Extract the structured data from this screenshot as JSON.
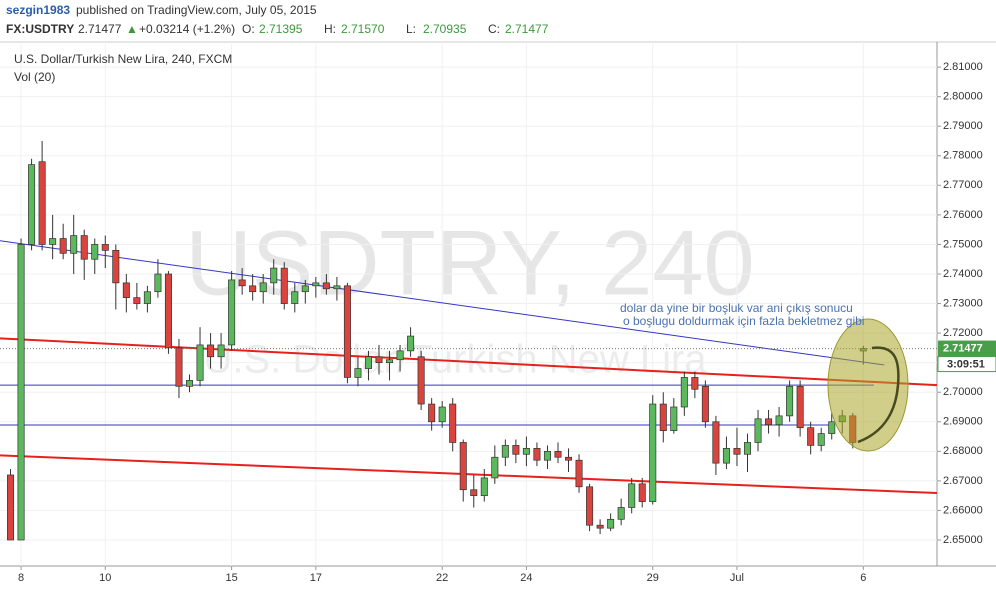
{
  "header": {
    "user": "sezgin1983",
    "published": "published on TradingView.com, July 05, 2015",
    "symbol": "FX:USDTRY",
    "last": "2.71477",
    "arrow": "▲",
    "change": "+0.03214 (+1.2%)",
    "ohlc": [
      {
        "label": "O:",
        "value": "2.71395"
      },
      {
        "label": "H:",
        "value": "2.71570"
      },
      {
        "label": "L:",
        "value": "2.70935"
      },
      {
        "label": "C:",
        "value": "2.71477"
      }
    ]
  },
  "chart_data": {
    "type": "candlestick",
    "title": "U.S. Dollar/Turkish New Lira, 240, FXCM",
    "indicator": "Vol (20)",
    "watermark": "USDTRY, 240",
    "watermark_sub": "U.S. Dollar/Turkish New Lira",
    "up_color": "#5cb85c",
    "down_color": "#d9443f",
    "grid": true,
    "xlim": [
      -1,
      88
    ],
    "ylim": [
      2.6412,
      2.8185
    ],
    "xticks": [
      {
        "value": 1,
        "label": "8"
      },
      {
        "value": 9,
        "label": "10"
      },
      {
        "value": 21,
        "label": "15"
      },
      {
        "value": 29,
        "label": "17"
      },
      {
        "value": 41,
        "label": "22"
      },
      {
        "value": 49,
        "label": "24"
      },
      {
        "value": 61,
        "label": "29"
      },
      {
        "value": 69,
        "label": "Jul"
      },
      {
        "value": 81,
        "label": "6"
      }
    ],
    "yticks": [
      {
        "value": 2.65,
        "label": "2.65000"
      },
      {
        "value": 2.66,
        "label": "2.66000"
      },
      {
        "value": 2.67,
        "label": "2.67000"
      },
      {
        "value": 2.68,
        "label": "2.68000"
      },
      {
        "value": 2.69,
        "label": "2.69000"
      },
      {
        "value": 2.7,
        "label": "2.70000"
      },
      {
        "value": 2.71,
        "label": "2.71000"
      },
      {
        "value": 2.72,
        "label": "2.72000"
      },
      {
        "value": 2.73,
        "label": "2.73000"
      },
      {
        "value": 2.74,
        "label": "2.74000"
      },
      {
        "value": 2.75,
        "label": "2.75000"
      },
      {
        "value": 2.76,
        "label": "2.76000"
      },
      {
        "value": 2.77,
        "label": "2.77000"
      },
      {
        "value": 2.78,
        "label": "2.78000"
      },
      {
        "value": 2.79,
        "label": "2.79000"
      },
      {
        "value": 2.8,
        "label": "2.80000"
      },
      {
        "value": 2.81,
        "label": "2.81000"
      }
    ],
    "last_price": 2.71477,
    "countdown": "3:09:51",
    "candles": [
      [
        2.672,
        2.674,
        2.65,
        2.65
      ],
      [
        2.65,
        2.752,
        2.65,
        2.75
      ],
      [
        2.75,
        2.779,
        2.748,
        2.777
      ],
      [
        2.778,
        2.785,
        2.748,
        2.75
      ],
      [
        2.75,
        2.76,
        2.745,
        2.752
      ],
      [
        2.752,
        2.757,
        2.745,
        2.747
      ],
      [
        2.747,
        2.76,
        2.74,
        2.753
      ],
      [
        2.753,
        2.755,
        2.738,
        2.745
      ],
      [
        2.745,
        2.752,
        2.74,
        2.75
      ],
      [
        2.75,
        2.753,
        2.742,
        2.748
      ],
      [
        2.748,
        2.75,
        2.728,
        2.737
      ],
      [
        2.737,
        2.74,
        2.727,
        2.732
      ],
      [
        2.732,
        2.737,
        2.728,
        2.73
      ],
      [
        2.73,
        2.736,
        2.727,
        2.734
      ],
      [
        2.734,
        2.745,
        2.732,
        2.74
      ],
      [
        2.74,
        2.741,
        2.713,
        2.715
      ],
      [
        2.715,
        2.718,
        2.698,
        2.702
      ],
      [
        2.702,
        2.706,
        2.7,
        2.704
      ],
      [
        2.704,
        2.722,
        2.702,
        2.716
      ],
      [
        2.716,
        2.72,
        2.708,
        2.712
      ],
      [
        2.712,
        2.72,
        2.708,
        2.716
      ],
      [
        2.716,
        2.741,
        2.714,
        2.738
      ],
      [
        2.738,
        2.742,
        2.733,
        2.736
      ],
      [
        2.736,
        2.74,
        2.731,
        2.734
      ],
      [
        2.734,
        2.74,
        2.73,
        2.737
      ],
      [
        2.737,
        2.745,
        2.733,
        2.742
      ],
      [
        2.742,
        2.744,
        2.728,
        2.73
      ],
      [
        2.73,
        2.737,
        2.727,
        2.734
      ],
      [
        2.734,
        2.738,
        2.73,
        2.736
      ],
      [
        2.736,
        2.739,
        2.732,
        2.737
      ],
      [
        2.737,
        2.74,
        2.733,
        2.735
      ],
      [
        2.735,
        2.739,
        2.731,
        2.736
      ],
      [
        2.736,
        2.737,
        2.703,
        2.705
      ],
      [
        2.705,
        2.712,
        2.702,
        2.708
      ],
      [
        2.708,
        2.714,
        2.704,
        2.712
      ],
      [
        2.712,
        2.716,
        2.706,
        2.71
      ],
      [
        2.71,
        2.714,
        2.704,
        2.711
      ],
      [
        2.711,
        2.716,
        2.707,
        2.714
      ],
      [
        2.714,
        2.722,
        2.712,
        2.719
      ],
      [
        2.712,
        2.714,
        2.694,
        2.696
      ],
      [
        2.696,
        2.698,
        2.687,
        2.69
      ],
      [
        2.69,
        2.697,
        2.688,
        2.695
      ],
      [
        2.696,
        2.698,
        2.68,
        2.683
      ],
      [
        2.683,
        2.684,
        2.663,
        2.667
      ],
      [
        2.667,
        2.672,
        2.661,
        2.665
      ],
      [
        2.665,
        2.674,
        2.663,
        2.671
      ],
      [
        2.671,
        2.682,
        2.669,
        2.678
      ],
      [
        2.678,
        2.684,
        2.675,
        2.682
      ],
      [
        2.682,
        2.684,
        2.676,
        2.679
      ],
      [
        2.679,
        2.685,
        2.675,
        2.681
      ],
      [
        2.681,
        2.683,
        2.675,
        2.677
      ],
      [
        2.677,
        2.682,
        2.674,
        2.68
      ],
      [
        2.68,
        2.683,
        2.676,
        2.678
      ],
      [
        2.678,
        2.681,
        2.673,
        2.677
      ],
      [
        2.677,
        2.679,
        2.666,
        2.668
      ],
      [
        2.668,
        2.669,
        2.653,
        2.655
      ],
      [
        2.655,
        2.657,
        2.652,
        2.654
      ],
      [
        2.654,
        2.659,
        2.653,
        2.657
      ],
      [
        2.657,
        2.664,
        2.655,
        2.661
      ],
      [
        2.661,
        2.671,
        2.659,
        2.669
      ],
      [
        2.669,
        2.671,
        2.661,
        2.663
      ],
      [
        2.663,
        2.699,
        2.662,
        2.696
      ],
      [
        2.696,
        2.7,
        2.683,
        2.687
      ],
      [
        2.687,
        2.698,
        2.686,
        2.695
      ],
      [
        2.695,
        2.707,
        2.692,
        2.705
      ],
      [
        2.705,
        2.707,
        2.698,
        2.701
      ],
      [
        2.702,
        2.704,
        2.688,
        2.69
      ],
      [
        2.69,
        2.692,
        2.672,
        2.676
      ],
      [
        2.676,
        2.685,
        2.674,
        2.681
      ],
      [
        2.681,
        2.688,
        2.675,
        2.679
      ],
      [
        2.679,
        2.686,
        2.673,
        2.683
      ],
      [
        2.683,
        2.694,
        2.68,
        2.691
      ],
      [
        2.691,
        2.694,
        2.686,
        2.689
      ],
      [
        2.689,
        2.695,
        2.685,
        2.692
      ],
      [
        2.692,
        2.704,
        2.69,
        2.702
      ],
      [
        2.702,
        2.704,
        2.685,
        2.688
      ],
      [
        2.688,
        2.69,
        2.679,
        2.682
      ],
      [
        2.682,
        2.688,
        2.68,
        2.686
      ],
      [
        2.686,
        2.693,
        2.684,
        2.69
      ],
      [
        2.69,
        2.694,
        2.686,
        2.692
      ],
      [
        2.692,
        2.693,
        2.681,
        2.683
      ],
      [
        2.71395,
        2.7157,
        2.70935,
        2.71477
      ]
    ],
    "lines": [
      {
        "color": "#3535c8",
        "width": 1,
        "points": [
          [
            -1.5,
            2.7515
          ],
          [
            83,
            2.7092
          ]
        ]
      },
      {
        "color": "#e8201c",
        "width": 2,
        "points": [
          [
            -1.5,
            2.7183
          ],
          [
            88,
            2.7024
          ]
        ]
      },
      {
        "color": "#e8201c",
        "width": 2,
        "points": [
          [
            -1.5,
            2.6787
          ],
          [
            88,
            2.6659
          ]
        ]
      },
      {
        "color": "#3535c8",
        "width": 1,
        "points": [
          [
            -1,
            2.7024
          ],
          [
            82,
            2.7024
          ]
        ]
      },
      {
        "color": "#3535c8",
        "width": 1,
        "points": [
          [
            -1,
            2.6889
          ],
          [
            78,
            2.6889
          ]
        ]
      }
    ],
    "annotation": [
      "dolar da yine bir boşluk var ani çıkış sonucu",
      "o boşlugu doldurmak için fazla bekletmez gibi"
    ]
  }
}
